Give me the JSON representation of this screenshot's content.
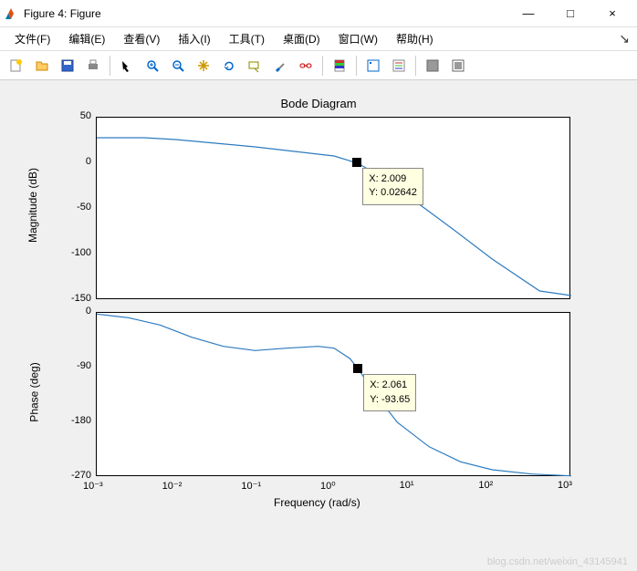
{
  "window": {
    "title": "Figure 4: Figure",
    "min": "—",
    "max": "□",
    "close": "×"
  },
  "menu": {
    "items": [
      "文件(F)",
      "编辑(E)",
      "查看(V)",
      "插入(I)",
      "工具(T)",
      "桌面(D)",
      "窗口(W)",
      "帮助(H)"
    ]
  },
  "toolbar": {
    "icons": [
      "new-file-icon",
      "open-file-icon",
      "save-icon",
      "print-icon",
      "sep",
      "arrow-icon",
      "zoom-in-icon",
      "zoom-out-icon",
      "pan-icon",
      "rotate-icon",
      "datatip-icon",
      "brush-icon",
      "link-icon",
      "sep",
      "colorbar-icon",
      "sep",
      "legend1-icon",
      "legend2-icon",
      "sep",
      "dock-icon",
      "undock-icon"
    ]
  },
  "chart": {
    "title": "Bode Diagram",
    "xlabel": "Frequency  (rad/s)",
    "line_color": "#2d7bc0",
    "bg": "#ffffff",
    "axis_color": "#000000",
    "tip_bg": "#ffffe1",
    "mag": {
      "ylabel": "Magnitude (dB)",
      "ylim": [
        -150,
        50
      ],
      "yticks": [
        -150,
        -100,
        -50,
        0,
        50
      ],
      "tip": {
        "x": "X: 2.009",
        "y": "Y: 0.02642"
      },
      "marker_logx": 0.303,
      "marker_y": 0.03,
      "points": [
        [
          -3,
          28
        ],
        [
          -2.4,
          28
        ],
        [
          -2,
          26
        ],
        [
          -1.5,
          22
        ],
        [
          -1,
          18
        ],
        [
          -0.5,
          13
        ],
        [
          0,
          8
        ],
        [
          0.303,
          0
        ],
        [
          0.7,
          -20
        ],
        [
          1,
          -40
        ],
        [
          1.5,
          -72
        ],
        [
          2,
          -105
        ],
        [
          2.6,
          -140
        ],
        [
          3,
          -145
        ]
      ]
    },
    "phase": {
      "ylabel": "Phase (deg)",
      "ylim": [
        -270,
        0
      ],
      "yticks": [
        -270,
        -180,
        -90,
        0
      ],
      "tip": {
        "x": "X: 2.061",
        "y": "Y: -93.65"
      },
      "marker_logx": 0.314,
      "marker_y": -93.65,
      "points": [
        [
          -3,
          -2
        ],
        [
          -2.6,
          -8
        ],
        [
          -2.2,
          -20
        ],
        [
          -1.8,
          -40
        ],
        [
          -1.4,
          -55
        ],
        [
          -1,
          -62
        ],
        [
          -0.6,
          -58
        ],
        [
          -0.2,
          -55
        ],
        [
          0,
          -58
        ],
        [
          0.2,
          -75
        ],
        [
          0.314,
          -93.65
        ],
        [
          0.5,
          -130
        ],
        [
          0.8,
          -180
        ],
        [
          1.2,
          -220
        ],
        [
          1.6,
          -245
        ],
        [
          2,
          -258
        ],
        [
          2.5,
          -265
        ],
        [
          3,
          -268
        ]
      ]
    },
    "xlim_log": [
      -3,
      3
    ],
    "xticks": [
      "10⁻³",
      "10⁻²",
      "10⁻¹",
      "10⁰",
      "10¹",
      "10²",
      "10³"
    ]
  },
  "watermark": "blog.csdn.net/weixin_43145941"
}
